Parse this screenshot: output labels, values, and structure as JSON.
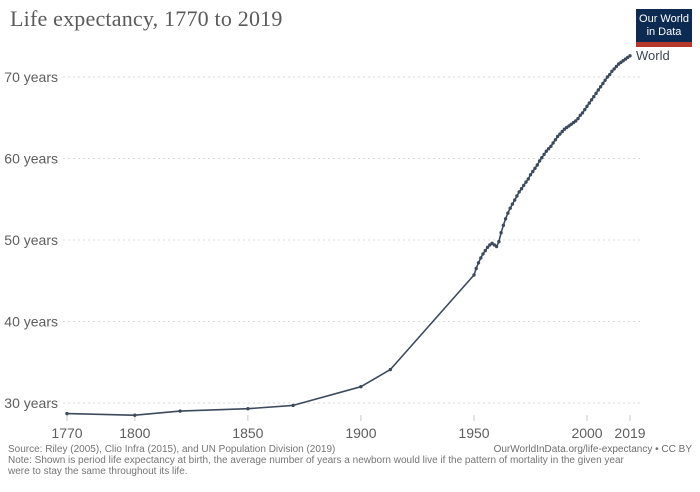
{
  "header": {
    "title": "Life expectancy, 1770 to 2019",
    "logo": {
      "line1": "Our World",
      "line2": "in Data",
      "bg_color": "#0d2a52",
      "bar_color": "#b4392b"
    }
  },
  "chart_data": {
    "type": "line",
    "title": "Life expectancy, 1770 to 2019",
    "xlabel": "",
    "ylabel": "",
    "xlim": [
      1770,
      2019
    ],
    "ylim": [
      27,
      74
    ],
    "x_ticks": [
      1770,
      1800,
      1850,
      1900,
      1950,
      2000,
      2019
    ],
    "y_ticks": [
      30,
      40,
      50,
      60,
      70
    ],
    "y_tick_suffix": " years",
    "grid": "horizontal dashed",
    "legend_position": "end-of-line label",
    "line_color": "#3d4a5c",
    "marker": "dot",
    "series": [
      {
        "name": "World",
        "points": [
          [
            1770,
            28.7
          ],
          [
            1800,
            28.5
          ],
          [
            1820,
            29.0
          ],
          [
            1850,
            29.3
          ],
          [
            1870,
            29.7
          ],
          [
            1900,
            32.0
          ],
          [
            1913,
            34.1
          ],
          [
            1950,
            45.7
          ],
          [
            1951,
            46.5
          ],
          [
            1952,
            47.2
          ],
          [
            1953,
            47.8
          ],
          [
            1954,
            48.3
          ],
          [
            1955,
            48.7
          ],
          [
            1956,
            49.1
          ],
          [
            1957,
            49.4
          ],
          [
            1958,
            49.6
          ],
          [
            1959,
            49.4
          ],
          [
            1960,
            49.2
          ],
          [
            1961,
            49.8
          ],
          [
            1962,
            50.9
          ],
          [
            1963,
            51.8
          ],
          [
            1964,
            52.6
          ],
          [
            1965,
            53.3
          ],
          [
            1966,
            53.9
          ],
          [
            1967,
            54.4
          ],
          [
            1968,
            54.9
          ],
          [
            1969,
            55.4
          ],
          [
            1970,
            55.9
          ],
          [
            1971,
            56.3
          ],
          [
            1972,
            56.7
          ],
          [
            1973,
            57.1
          ],
          [
            1974,
            57.5
          ],
          [
            1975,
            58.0
          ],
          [
            1976,
            58.4
          ],
          [
            1977,
            58.8
          ],
          [
            1978,
            59.2
          ],
          [
            1979,
            59.7
          ],
          [
            1980,
            60.1
          ],
          [
            1981,
            60.5
          ],
          [
            1982,
            60.9
          ],
          [
            1983,
            61.2
          ],
          [
            1984,
            61.5
          ],
          [
            1985,
            61.9
          ],
          [
            1986,
            62.3
          ],
          [
            1987,
            62.7
          ],
          [
            1988,
            63.0
          ],
          [
            1989,
            63.3
          ],
          [
            1990,
            63.6
          ],
          [
            1991,
            63.8
          ],
          [
            1992,
            64.0
          ],
          [
            1993,
            64.2
          ],
          [
            1994,
            64.4
          ],
          [
            1995,
            64.6
          ],
          [
            1996,
            64.9
          ],
          [
            1997,
            65.3
          ],
          [
            1998,
            65.6
          ],
          [
            1999,
            66.0
          ],
          [
            2000,
            66.4
          ],
          [
            2001,
            66.8
          ],
          [
            2002,
            67.2
          ],
          [
            2003,
            67.6
          ],
          [
            2004,
            68.0
          ],
          [
            2005,
            68.4
          ],
          [
            2006,
            68.8
          ],
          [
            2007,
            69.2
          ],
          [
            2008,
            69.6
          ],
          [
            2009,
            70.0
          ],
          [
            2010,
            70.3
          ],
          [
            2011,
            70.7
          ],
          [
            2012,
            71.0
          ],
          [
            2013,
            71.3
          ],
          [
            2014,
            71.6
          ],
          [
            2015,
            71.8
          ],
          [
            2016,
            72.0
          ],
          [
            2017,
            72.2
          ],
          [
            2018,
            72.4
          ],
          [
            2019,
            72.6
          ]
        ]
      }
    ]
  },
  "footer": {
    "source_line": "Source: Riley (2005), Clio Infra (2015), and UN Population Division (2019)",
    "link_line": "OurWorldInData.org/life-expectancy • CC BY",
    "note_lines": [
      "Note: Shown is period life expectancy at birth, the average number of years a newborn would live if the pattern of mortality in the given year",
      "were to stay the same throughout its life."
    ]
  }
}
